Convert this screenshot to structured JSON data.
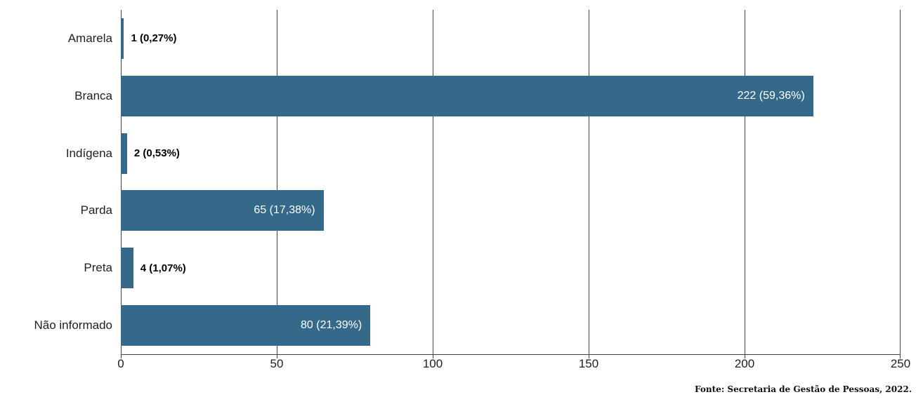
{
  "chart_data": {
    "type": "bar",
    "orientation": "horizontal",
    "title": "",
    "categories": [
      "Amarela",
      "Branca",
      "Indígena",
      "Parda",
      "Preta",
      "Não informado"
    ],
    "values": [
      1,
      222,
      2,
      65,
      4,
      80
    ],
    "percentages": [
      0.27,
      59.36,
      0.53,
      17.38,
      1.07,
      21.39
    ],
    "bar_labels": [
      "1 (0,27%)",
      "222 (59,36%)",
      "2 (0,53%)",
      "65 (17,38%)",
      "4 (1,07%)",
      "80 (21,39%)"
    ],
    "xlim": [
      0,
      250
    ],
    "x_ticks": [
      0,
      50,
      100,
      150,
      200,
      250
    ],
    "grid": "vertical-gridlines-on",
    "legend": "none",
    "colors": {
      "bar": "#346989",
      "gridline": "#444444",
      "label_inside": "#ffffff",
      "label_outside": "#000000",
      "axis_text": "#1f1f1f"
    },
    "source": "Fonte: Secretaria de Gestão de Pessoas, 2022."
  }
}
